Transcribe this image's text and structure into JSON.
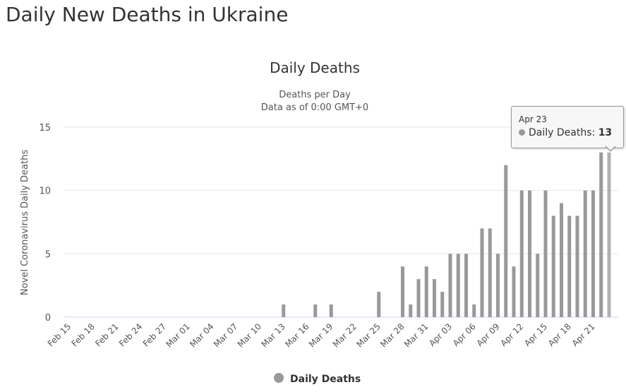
{
  "page_title": "Daily New Deaths in Ukraine",
  "tooltip": {
    "date": "Apr 23",
    "series": "Daily Deaths",
    "value": "13"
  },
  "chart_data": {
    "type": "bar",
    "title": "Daily Deaths",
    "subtitle_lines": [
      "Deaths per Day",
      "Data as of 0:00 GMT+0"
    ],
    "ylabel": "Novel Coronavirus Daily Deaths",
    "xlabel": "",
    "ylim": [
      0,
      15
    ],
    "yticks": [
      0,
      5,
      10,
      15
    ],
    "grid": true,
    "legend": "bottom",
    "series": [
      {
        "name": "Daily Deaths",
        "color": "#999999"
      }
    ],
    "x_tick_labels": [
      "Feb 15",
      "Feb 18",
      "Feb 21",
      "Feb 24",
      "Feb 27",
      "Mar 01",
      "Mar 04",
      "Mar 07",
      "Mar 10",
      "Mar 13",
      "Mar 16",
      "Mar 19",
      "Mar 22",
      "Mar 25",
      "Mar 28",
      "Mar 31",
      "Apr 03",
      "Apr 06",
      "Apr 09",
      "Apr 12",
      "Apr 15",
      "Apr 18",
      "Apr 21"
    ],
    "first_date": "Feb 15",
    "last_date": "Apr 23",
    "values": [
      0,
      0,
      0,
      0,
      0,
      0,
      0,
      0,
      0,
      0,
      0,
      0,
      0,
      0,
      0,
      0,
      0,
      0,
      0,
      0,
      0,
      0,
      0,
      0,
      0,
      0,
      0,
      1,
      0,
      0,
      0,
      1,
      0,
      1,
      0,
      0,
      0,
      0,
      0,
      2,
      0,
      0,
      4,
      1,
      3,
      4,
      3,
      2,
      5,
      5,
      5,
      1,
      7,
      7,
      5,
      12,
      4,
      10,
      10,
      5,
      10,
      8,
      9,
      8,
      8,
      10,
      10,
      13,
      13
    ]
  }
}
